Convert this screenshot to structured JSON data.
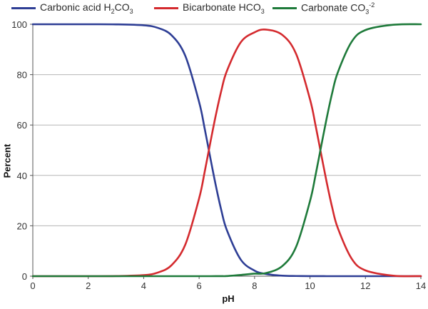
{
  "legend": [
    {
      "prefix": "Carbonic acid H",
      "sub1": "2",
      "mid": "CO",
      "sub2": "3",
      "sup": "",
      "color": "#2E3E95"
    },
    {
      "prefix": "Bicarbonate HCO",
      "sub1": "3",
      "mid": "",
      "sub2": "",
      "sup": "",
      "color": "#D42A2E"
    },
    {
      "prefix": "Carbonate CO",
      "sub1": "3",
      "mid": "",
      "sub2": "",
      "sup": "-2",
      "color": "#1E7A3A"
    }
  ],
  "chart_data": {
    "type": "line",
    "xlabel": "pH",
    "ylabel": "Percent",
    "xlim": [
      0,
      14
    ],
    "ylim": [
      0,
      100
    ],
    "x_ticks": [
      0,
      2,
      4,
      6,
      8,
      10,
      12,
      14
    ],
    "y_ticks": [
      0,
      20,
      40,
      60,
      80,
      100
    ],
    "grid": "horizontal",
    "legend_position": "top",
    "x": [
      0,
      1,
      2,
      3,
      4,
      4.5,
      5,
      5.5,
      6,
      6.2,
      6.4,
      6.6,
      6.8,
      7,
      7.5,
      8,
      8.4,
      9,
      9.5,
      10,
      10.2,
      10.4,
      10.6,
      10.8,
      11,
      11.5,
      12,
      13,
      14
    ],
    "series": [
      {
        "name": "Carbonic acid H2CO3",
        "color": "#2E3E95",
        "values": [
          100,
          100,
          100,
          99.96,
          99.6,
          98.6,
          95.7,
          87.5,
          69.1,
          58.6,
          47.2,
          36.1,
          26.2,
          18.3,
          6.6,
          2.2,
          0.9,
          0.2,
          0.07,
          0.02,
          0.01,
          0.01,
          0,
          0,
          0,
          0,
          0,
          0,
          0
        ]
      },
      {
        "name": "Bicarbonate HCO3",
        "color": "#D42A2E",
        "values": [
          0,
          0,
          0,
          0.04,
          0.4,
          1.4,
          4.3,
          12.5,
          30.9,
          41.4,
          52.8,
          63.8,
          73.6,
          81.4,
          92.8,
          96.8,
          97.9,
          95.8,
          88.2,
          70.2,
          59.9,
          48.6,
          37.4,
          27.3,
          19.2,
          7.0,
          2.3,
          0.2,
          0.02
        ]
      },
      {
        "name": "Carbonate CO3-2",
        "color": "#1E7A3A",
        "values": [
          0,
          0,
          0,
          0,
          0,
          0,
          0,
          0,
          0,
          0,
          0,
          0.01,
          0.02,
          0.04,
          0.5,
          1.0,
          1.2,
          4.0,
          11.7,
          29.8,
          40.1,
          51.4,
          62.6,
          72.7,
          80.8,
          93.0,
          97.7,
          99.8,
          100
        ]
      }
    ]
  }
}
